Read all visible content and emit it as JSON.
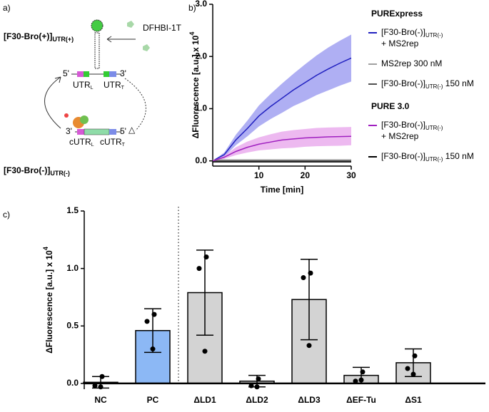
{
  "panel_labels": [
    "a)",
    "b)",
    "c)"
  ],
  "diagram": {
    "top_label": "[F30-Bro(+)]",
    "top_label_sub": "UTR(+)",
    "reagent": "DFHBI-1T",
    "strand_top": {
      "left_end": "5'",
      "right_end": "3'",
      "left_region": "UTR",
      "left_region_sub": "L",
      "right_region": "UTR",
      "right_region_sub": "T"
    },
    "strand_bottom": {
      "left_end": "3'",
      "right_end": "5'",
      "left_region": "cUTR",
      "left_region_sub": "L",
      "right_region": "cUTR",
      "right_region_sub": "T"
    },
    "bottom_label": "[F30-Bro(-)]",
    "bottom_label_sub": "UTR(-)"
  },
  "chart_data": [
    {
      "type": "line",
      "ylabel": "ΔFluorescence [a.u.] x 10",
      "ylabel_sup": "4",
      "xlabel": "Time [min]",
      "x": [
        0,
        2.5,
        5,
        7.5,
        10,
        12.5,
        15,
        17.5,
        20,
        22.5,
        25,
        27.5,
        30
      ],
      "xlim": [
        0,
        30
      ],
      "xticks": [
        10,
        20,
        30
      ],
      "ylim": [
        -0.1,
        3.0
      ],
      "yticks": [
        {
          "value": 0,
          "label": "0.0"
        },
        {
          "value": 1,
          "label": "1.0"
        },
        {
          "value": 2,
          "label": "2.0"
        },
        {
          "value": 3,
          "label": "3.0"
        }
      ],
      "groups": [
        {
          "title": "PURExpress",
          "series": [
            {
              "name": "[F30-Bro(-)]",
              "name_sub": "UTR(-)",
              "name_line2": "+ MS2rep",
              "color": "#2020c0",
              "band_color": "#9b9bf0",
              "values": [
                0,
                0.12,
                0.4,
                0.62,
                0.86,
                1.04,
                1.2,
                1.36,
                1.5,
                1.64,
                1.76,
                1.87,
                1.97
              ],
              "upper": [
                0,
                0.16,
                0.5,
                0.77,
                1.06,
                1.28,
                1.48,
                1.67,
                1.85,
                2.02,
                2.17,
                2.3,
                2.42
              ],
              "lower": [
                0,
                0.08,
                0.3,
                0.47,
                0.66,
                0.8,
                0.92,
                1.05,
                1.15,
                1.26,
                1.35,
                1.44,
                1.52
              ]
            },
            {
              "name": "MS2rep 300 nM",
              "color": "#a0a0a0",
              "values": [
                0.02,
                0.02,
                0.02,
                0.02,
                0.02,
                0.02,
                0.02,
                0.02,
                0.02,
                0.02,
                0.02,
                0.02,
                0.02
              ]
            },
            {
              "name": "[F30-Bro(-)]",
              "name_sub": "UTR(-)",
              "name_after": " 150 nM",
              "color": "#505050",
              "values": [
                0,
                0,
                0,
                0,
                0,
                0,
                0,
                0,
                0,
                0,
                0,
                0,
                0
              ]
            }
          ]
        },
        {
          "title": "PURE 3.0",
          "series": [
            {
              "name": "[F30-Bro(-)]",
              "name_sub": "UTR(-)",
              "name_line2": "+ MS2rep",
              "color": "#a020c0",
              "band_color": "#e8a8ec",
              "values": [
                0,
                0.07,
                0.18,
                0.26,
                0.32,
                0.36,
                0.4,
                0.42,
                0.44,
                0.45,
                0.46,
                0.465,
                0.47
              ],
              "upper": [
                0,
                0.1,
                0.26,
                0.37,
                0.45,
                0.51,
                0.56,
                0.59,
                0.61,
                0.63,
                0.64,
                0.645,
                0.65
              ],
              "lower": [
                0,
                0.04,
                0.11,
                0.16,
                0.2,
                0.22,
                0.24,
                0.25,
                0.27,
                0.28,
                0.285,
                0.29,
                0.3
              ]
            },
            {
              "name": "[F30-Bro(-)]",
              "name_sub": "UTR(-)",
              "name_after": " 150 nM",
              "color": "#000000",
              "values": [
                -0.02,
                -0.02,
                -0.02,
                -0.02,
                -0.02,
                -0.02,
                -0.02,
                -0.02,
                -0.02,
                -0.02,
                -0.02,
                -0.02,
                -0.02
              ]
            }
          ]
        }
      ]
    },
    {
      "type": "bar",
      "ylabel": "ΔFluorescence [a.u.] x 10",
      "ylabel_sup": "4",
      "categories": [
        "NC",
        "PC",
        "ΔLD1",
        "ΔLD2",
        "ΔLD3",
        "ΔEF-Tu",
        "ΔS1"
      ],
      "values": [
        0.01,
        0.46,
        0.79,
        0.02,
        0.73,
        0.07,
        0.18
      ],
      "errors": [
        0.05,
        0.19,
        0.37,
        0.05,
        0.35,
        0.07,
        0.12
      ],
      "points": [
        [
          0.06,
          -0.02,
          -0.03
        ],
        [
          0.6,
          0.54,
          0.3
        ],
        [
          1.1,
          1.0,
          0.28
        ],
        [
          0.04,
          -0.02,
          -0.03
        ],
        [
          0.96,
          0.92,
          0.33
        ],
        [
          0.1,
          0.02,
          0.03
        ],
        [
          0.24,
          0.13,
          0.08
        ]
      ],
      "colors": [
        "#d3d3d3",
        "#8cb8f5",
        "#d3d3d3",
        "#d3d3d3",
        "#d3d3d3",
        "#d3d3d3",
        "#d3d3d3"
      ],
      "ylim": [
        -0.05,
        1.5
      ],
      "yticks": [
        {
          "value": 0,
          "label": "0.0"
        },
        {
          "value": 0.5,
          "label": "0.5"
        },
        {
          "value": 1,
          "label": "1.0"
        },
        {
          "value": 1.5,
          "label": "1.5"
        }
      ]
    }
  ]
}
